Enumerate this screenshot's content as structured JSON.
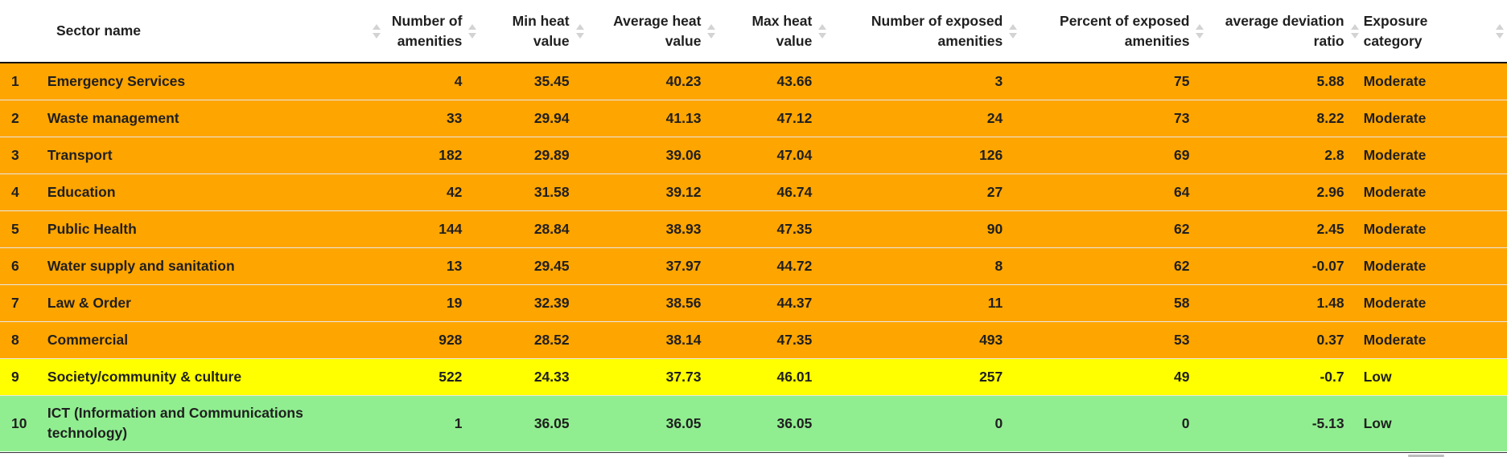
{
  "table": {
    "columns": [
      {
        "label": "Sector name"
      },
      {
        "label": "Number of amenities"
      },
      {
        "label": "Min heat value"
      },
      {
        "label": "Average heat value"
      },
      {
        "label": "Max heat value"
      },
      {
        "label": "Number of exposed amenities"
      },
      {
        "label": "Percent of exposed amenities"
      },
      {
        "label": "average deviation ratio"
      },
      {
        "label": "Exposure category"
      }
    ],
    "colors": {
      "Moderate": "#ffa500",
      "Low_yellow": "#ffff00",
      "Low_green": "#90ee90"
    },
    "rows": [
      {
        "index": "1",
        "sector": "Emergency Services",
        "amenities": "4",
        "min": "35.45",
        "avg": "40.23",
        "max": "43.66",
        "exposed": "3",
        "percent": "75",
        "deviation": "5.88",
        "category": "Moderate",
        "color": "#ffa500"
      },
      {
        "index": "2",
        "sector": "Waste management",
        "amenities": "33",
        "min": "29.94",
        "avg": "41.13",
        "max": "47.12",
        "exposed": "24",
        "percent": "73",
        "deviation": "8.22",
        "category": "Moderate",
        "color": "#ffa500"
      },
      {
        "index": "3",
        "sector": "Transport",
        "amenities": "182",
        "min": "29.89",
        "avg": "39.06",
        "max": "47.04",
        "exposed": "126",
        "percent": "69",
        "deviation": "2.8",
        "category": "Moderate",
        "color": "#ffa500"
      },
      {
        "index": "4",
        "sector": "Education",
        "amenities": "42",
        "min": "31.58",
        "avg": "39.12",
        "max": "46.74",
        "exposed": "27",
        "percent": "64",
        "deviation": "2.96",
        "category": "Moderate",
        "color": "#ffa500"
      },
      {
        "index": "5",
        "sector": "Public Health",
        "amenities": "144",
        "min": "28.84",
        "avg": "38.93",
        "max": "47.35",
        "exposed": "90",
        "percent": "62",
        "deviation": "2.45",
        "category": "Moderate",
        "color": "#ffa500"
      },
      {
        "index": "6",
        "sector": "Water supply and sanitation",
        "amenities": "13",
        "min": "29.45",
        "avg": "37.97",
        "max": "44.72",
        "exposed": "8",
        "percent": "62",
        "deviation": "-0.07",
        "category": "Moderate",
        "color": "#ffa500"
      },
      {
        "index": "7",
        "sector": "Law & Order",
        "amenities": "19",
        "min": "32.39",
        "avg": "38.56",
        "max": "44.37",
        "exposed": "11",
        "percent": "58",
        "deviation": "1.48",
        "category": "Moderate",
        "color": "#ffa500"
      },
      {
        "index": "8",
        "sector": "Commercial",
        "amenities": "928",
        "min": "28.52",
        "avg": "38.14",
        "max": "47.35",
        "exposed": "493",
        "percent": "53",
        "deviation": "0.37",
        "category": "Moderate",
        "color": "#ffa500"
      },
      {
        "index": "9",
        "sector": "Society/community & culture",
        "amenities": "522",
        "min": "24.33",
        "avg": "37.73",
        "max": "46.01",
        "exposed": "257",
        "percent": "49",
        "deviation": "-0.7",
        "category": "Low",
        "color": "#ffff00"
      },
      {
        "index": "10",
        "sector": "ICT (Information and Communications technology)",
        "amenities": "1",
        "min": "36.05",
        "avg": "36.05",
        "max": "36.05",
        "exposed": "0",
        "percent": "0",
        "deviation": "-5.13",
        "category": "Low",
        "color": "#90ee90"
      }
    ]
  }
}
